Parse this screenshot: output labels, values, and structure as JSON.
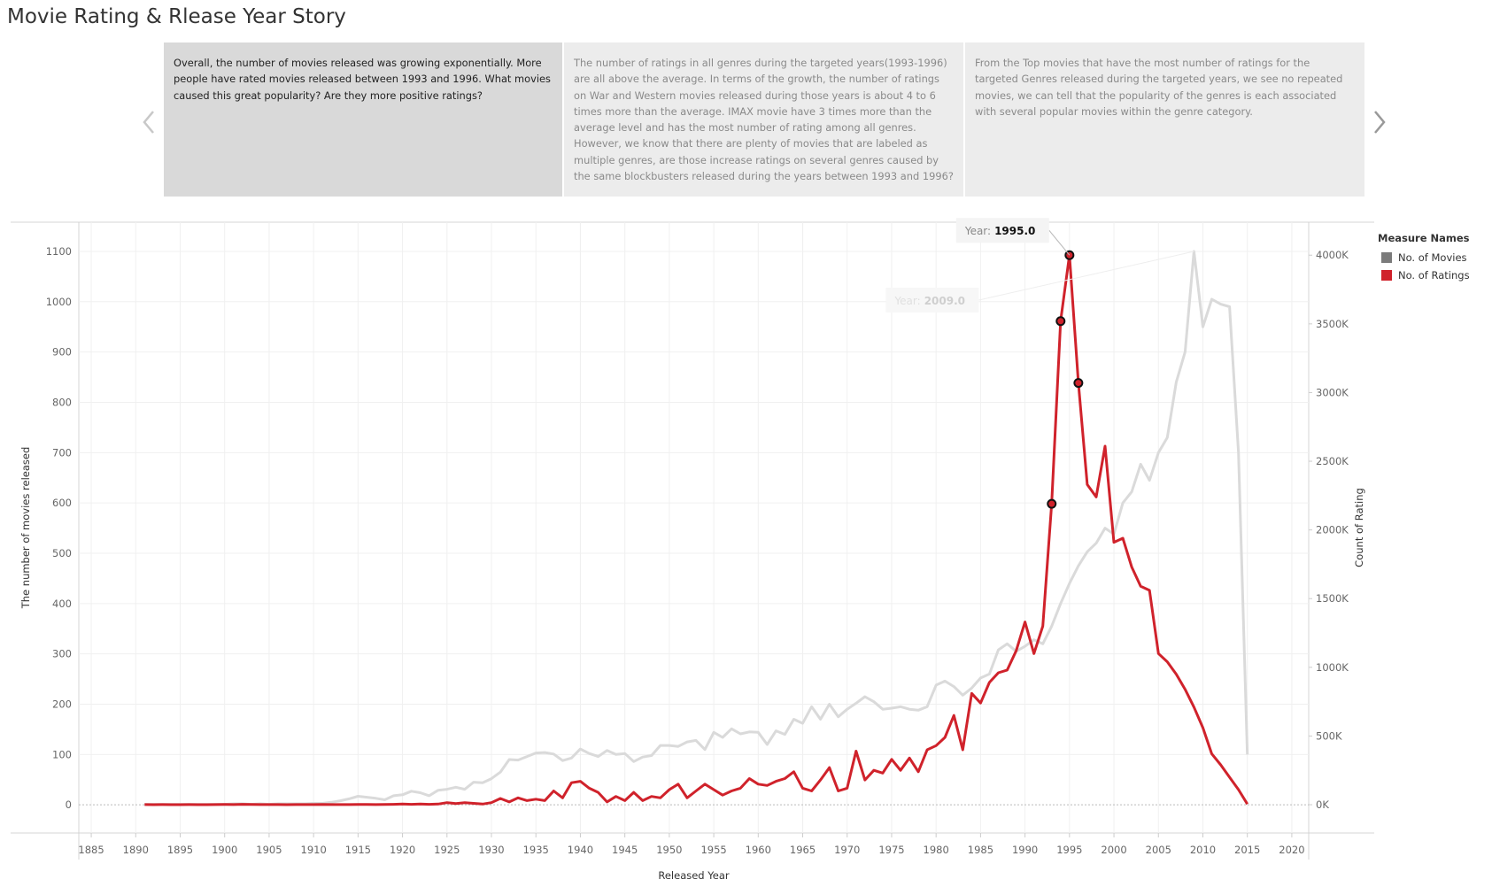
{
  "header": {
    "title": "Movie Rating & Rlease Year Story"
  },
  "story_points": [
    {
      "text": "Overall, the number of movies released was growing exponentially. More people have rated movies released between 1993 and 1996. What movies caused this great popularity? Are they more positive ratings?",
      "selected": true
    },
    {
      "text": "The number of ratings in all genres during the targeted years(1993-1996) are all above the average. In terms of the growth, the number of ratings on War and Western movies released during those years is about 4 to 6 times more than the average. IMAX movie have 3 times more than the average level and has the most number of rating among all genres. However, we know that there are plenty of movies that are labeled as multiple genres, are those increase ratings on several genres caused by the same blockbusters released during the years between 1993 and 1996?",
      "selected": false
    },
    {
      "text": "From the Top movies that have the most number of ratings for the targeted Genres released during the targeted years, we see no repeated movies, we can tell that the popularity of the genres is each associated with several popular movies within the genre category.",
      "selected": false
    }
  ],
  "chart_data": {
    "type": "line",
    "x_label": "Released Year",
    "y_label": "The number of movies released",
    "y2_label": "Count of Rating",
    "legend_title": "Measure Names",
    "grid": true,
    "x": [
      1891,
      1892,
      1893,
      1894,
      1895,
      1896,
      1897,
      1898,
      1899,
      1900,
      1901,
      1902,
      1903,
      1904,
      1905,
      1906,
      1907,
      1908,
      1909,
      1910,
      1911,
      1912,
      1913,
      1914,
      1915,
      1916,
      1917,
      1918,
      1919,
      1920,
      1921,
      1922,
      1923,
      1924,
      1925,
      1926,
      1927,
      1928,
      1929,
      1930,
      1931,
      1932,
      1933,
      1934,
      1935,
      1936,
      1937,
      1938,
      1939,
      1940,
      1941,
      1942,
      1943,
      1944,
      1945,
      1946,
      1947,
      1948,
      1949,
      1950,
      1951,
      1952,
      1953,
      1954,
      1955,
      1956,
      1957,
      1958,
      1959,
      1960,
      1961,
      1962,
      1963,
      1964,
      1965,
      1966,
      1967,
      1968,
      1969,
      1970,
      1971,
      1972,
      1973,
      1974,
      1975,
      1976,
      1977,
      1978,
      1979,
      1980,
      1981,
      1982,
      1983,
      1984,
      1985,
      1986,
      1987,
      1988,
      1989,
      1990,
      1991,
      1992,
      1993,
      1994,
      1995,
      1996,
      1997,
      1998,
      1999,
      2000,
      2001,
      2002,
      2003,
      2004,
      2005,
      2006,
      2007,
      2008,
      2009,
      2010,
      2011,
      2012,
      2013,
      2014,
      2015
    ],
    "series": [
      {
        "name": "No. of Movies",
        "color": "#dadada",
        "legend_color": "#7b7b7b",
        "axis": "y",
        "values": [
          1,
          1,
          1,
          1,
          1,
          1,
          1,
          1,
          1,
          1,
          2,
          2,
          1,
          2,
          1,
          2,
          2,
          2,
          2,
          3,
          3,
          5,
          8,
          12,
          17,
          15,
          13,
          10,
          18,
          20,
          27,
          24,
          18,
          29,
          31,
          35,
          31,
          45,
          44,
          52,
          65,
          90,
          89,
          96,
          103,
          104,
          101,
          88,
          93,
          111,
          102,
          96,
          108,
          100,
          102,
          86,
          95,
          98,
          118,
          118,
          116,
          125,
          128,
          110,
          144,
          134,
          151,
          141,
          145,
          144,
          120,
          147,
          140,
          170,
          162,
          195,
          170,
          200,
          175,
          190,
          202,
          215,
          205,
          190,
          192,
          195,
          190,
          188,
          195,
          238,
          246,
          235,
          218,
          232,
          252,
          260,
          308,
          320,
          305,
          315,
          328,
          320,
          355,
          400,
          440,
          475,
          503,
          520,
          550,
          538,
          600,
          622,
          677,
          645,
          700,
          730,
          840,
          900,
          1100,
          950,
          1005,
          995,
          990,
          700,
          100
        ]
      },
      {
        "name": "No. of Ratings",
        "color": "#d0222b",
        "legend_color": "#d0222b",
        "axis": "y2",
        "values": [
          1000,
          500,
          1000,
          500,
          500,
          1000,
          500,
          500,
          1000,
          2000,
          1000,
          3000,
          2000,
          1000,
          1000,
          1000,
          500,
          1000,
          1000,
          1000,
          2000,
          1000,
          1000,
          1000,
          2000,
          2000,
          1000,
          2000,
          3000,
          5000,
          3000,
          5000,
          3000,
          5000,
          15000,
          8000,
          15000,
          10000,
          5000,
          15000,
          45000,
          20000,
          50000,
          30000,
          40000,
          30000,
          100000,
          50000,
          160000,
          170000,
          120000,
          90000,
          20000,
          60000,
          30000,
          90000,
          30000,
          60000,
          50000,
          110000,
          150000,
          50000,
          100000,
          150000,
          110000,
          70000,
          100000,
          120000,
          190000,
          150000,
          140000,
          170000,
          190000,
          240000,
          120000,
          100000,
          180000,
          270000,
          100000,
          120000,
          390000,
          180000,
          250000,
          230000,
          330000,
          250000,
          340000,
          240000,
          400000,
          430000,
          490000,
          650000,
          400000,
          810000,
          740000,
          890000,
          960000,
          980000,
          1120000,
          1330000,
          1100000,
          1300000,
          2190000,
          3520000,
          4000000,
          3070000,
          2330000,
          2240000,
          2610000,
          1910000,
          1940000,
          1730000,
          1590000,
          1560000,
          1100000,
          1040000,
          950000,
          840000,
          710000,
          560000,
          370000,
          290000,
          200000,
          110000,
          5000
        ]
      }
    ],
    "highlighted_x": [
      1993,
      1994,
      1995,
      1996
    ],
    "annotations": [
      {
        "prefix": "Year:",
        "label": "1995.0",
        "x": 1995,
        "series": 1,
        "faded": false
      },
      {
        "prefix": "Year:",
        "label": "2009.0",
        "x": 2009,
        "series": 0,
        "faded": true
      }
    ],
    "xlim": [
      1883.6,
      2021.9
    ],
    "xticks": [
      1885,
      1890,
      1895,
      1900,
      1905,
      1910,
      1915,
      1920,
      1925,
      1930,
      1935,
      1940,
      1945,
      1950,
      1955,
      1960,
      1965,
      1970,
      1975,
      1980,
      1985,
      1990,
      1995,
      2000,
      2005,
      2010,
      2015,
      2020
    ],
    "ylim": [
      -56,
      1158
    ],
    "yticks": [
      0,
      100,
      200,
      300,
      400,
      500,
      600,
      700,
      800,
      900,
      1000,
      1100
    ],
    "y2lim": [
      -206000,
      4240000
    ],
    "y2ticks": [
      {
        "value": 0,
        "label": "0K"
      },
      {
        "value": 500000,
        "label": "500K"
      },
      {
        "value": 1000000,
        "label": "1000K"
      },
      {
        "value": 1500000,
        "label": "1500K"
      },
      {
        "value": 2000000,
        "label": "2000K"
      },
      {
        "value": 2500000,
        "label": "2500K"
      },
      {
        "value": 3000000,
        "label": "3000K"
      },
      {
        "value": 3500000,
        "label": "3500K"
      },
      {
        "value": 4000000,
        "label": "4000K"
      }
    ]
  }
}
